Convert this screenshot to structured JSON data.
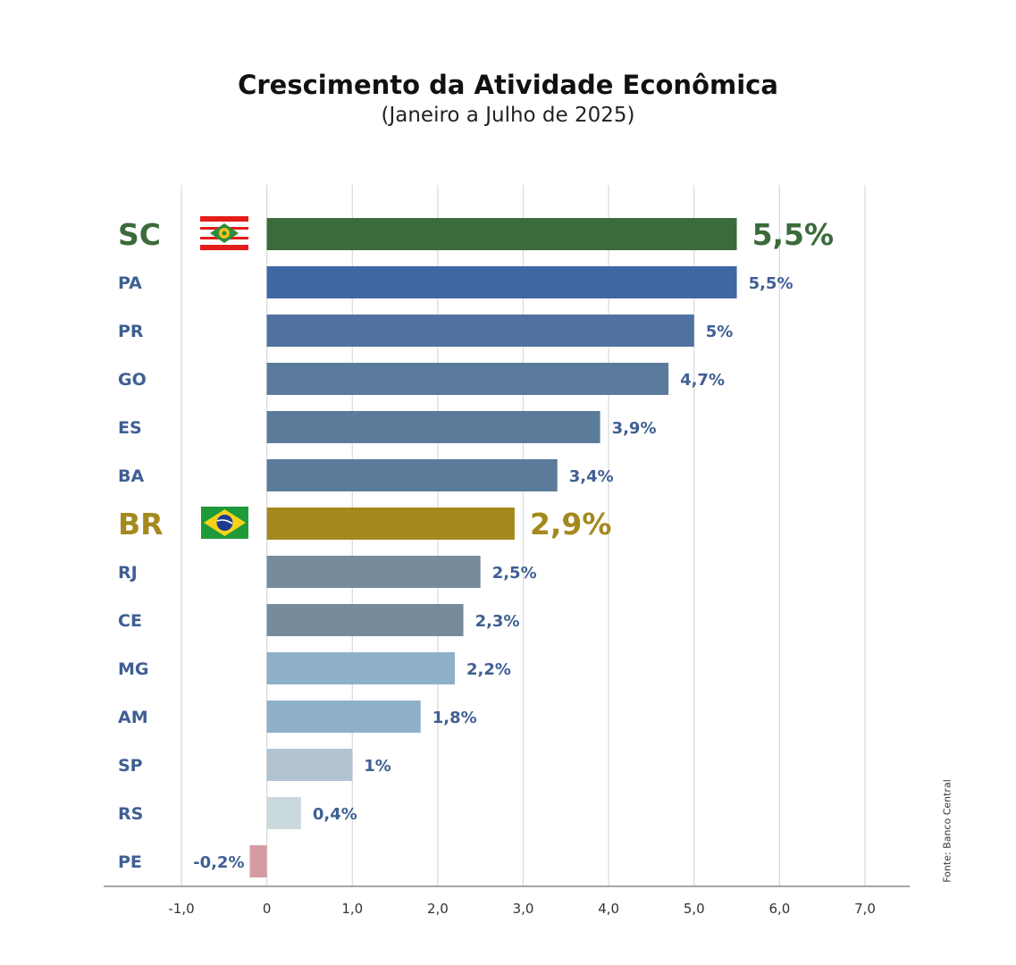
{
  "title": "Crescimento da Atividade Econômica",
  "subtitle": "(Janeiro a Julho de 2025)",
  "source": "Fonte: Banco Central",
  "chart_data": {
    "type": "bar",
    "orientation": "horizontal",
    "categories": [
      "SC",
      "PA",
      "PR",
      "GO",
      "ES",
      "BA",
      "BR",
      "RJ",
      "CE",
      "MG",
      "AM",
      "SP",
      "RS",
      "PE"
    ],
    "values": [
      5.5,
      5.5,
      5.0,
      4.7,
      3.9,
      3.4,
      2.9,
      2.5,
      2.3,
      2.2,
      1.8,
      1.0,
      0.4,
      -0.2
    ],
    "value_labels": [
      "5,5%",
      "5,5%",
      "5%",
      "4,7%",
      "3,9%",
      "3,4%",
      "2,9%",
      "2,5%",
      "2,3%",
      "2,2%",
      "1,8%",
      "1%",
      "0,4%",
      "-0,2%"
    ],
    "bar_colors": [
      "#3b6b3a",
      "#3f67a3",
      "#4f72a0",
      "#5b7b9d",
      "#5a7b9a",
      "#5a7b9a",
      "#a3891e",
      "#768b9b",
      "#768b9b",
      "#8eb0c8",
      "#8eb0c8",
      "#b1c3d1",
      "#c9d9dc",
      "#d59ba3"
    ],
    "highlight": [
      "SC",
      "BR"
    ],
    "highlight_colors": {
      "SC": "#3b6b3a",
      "BR": "#a3891e"
    },
    "flags": {
      "SC": "santa-catarina-flag-icon",
      "BR": "brazil-flag-icon"
    },
    "label_color": "#3f5f93",
    "xlim": [
      -1,
      7
    ],
    "xticks": [
      -1,
      0,
      1,
      2,
      3,
      4,
      5,
      6,
      7
    ],
    "xtick_labels": [
      "-1,0",
      "0",
      "1,0",
      "2,0",
      "3,0",
      "4,0",
      "5,0",
      "6,0",
      "7,0"
    ],
    "grid": true,
    "legend": false
  }
}
